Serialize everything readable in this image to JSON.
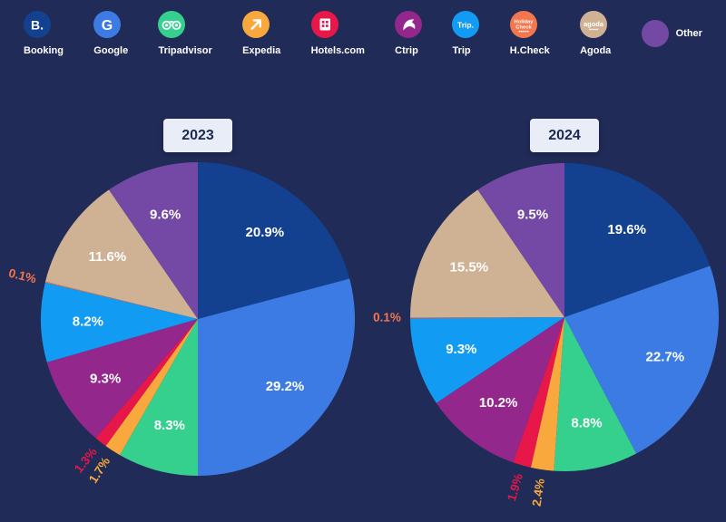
{
  "page": {
    "background": "#202b57",
    "badge_bg": "#e9edf8",
    "badge_text_color": "#1c2a52"
  },
  "legend": {
    "items": [
      {
        "label": "Booking",
        "icon": "booking-icon",
        "color": "#14418f"
      },
      {
        "label": "Google",
        "icon": "google-icon",
        "color": "#3d7be4"
      },
      {
        "label": "Tripadvisor",
        "icon": "tripadvisor-icon",
        "color": "#35d08e"
      },
      {
        "label": "Expedia",
        "icon": "expedia-icon",
        "color": "#f9a83d"
      },
      {
        "label": "Hotels.com",
        "icon": "hotels-icon",
        "color": "#e8174a"
      },
      {
        "label": "Ctrip",
        "icon": "ctrip-icon",
        "color": "#93278b"
      },
      {
        "label": "Trip",
        "icon": "trip-icon",
        "color": "#129bf2"
      },
      {
        "label": "H.Check",
        "icon": "holidaycheck-icon",
        "color": "#f3764d"
      },
      {
        "label": "Agoda",
        "icon": "agoda-icon",
        "color": "#cfb294"
      },
      {
        "label": "Other",
        "icon": "other-icon",
        "color": "#7349a5",
        "layout": "row"
      }
    ]
  },
  "chart_data": [
    {
      "type": "pie",
      "title": "2023",
      "unit": "%",
      "start_angle_deg": 0,
      "direction": "clockwise",
      "legend_position": "top",
      "categories": [
        "Booking",
        "Google",
        "Tripadvisor",
        "Expedia",
        "Hotels.com",
        "Ctrip",
        "Trip",
        "H.Check",
        "Agoda",
        "Other"
      ],
      "values": [
        20.9,
        29.2,
        8.3,
        1.7,
        1.3,
        9.3,
        8.2,
        0.1,
        11.6,
        9.6
      ],
      "colors": [
        "#14418f",
        "#3d7be4",
        "#35d08e",
        "#f9a83d",
        "#e8174a",
        "#93278b",
        "#129bf2",
        "#f3764d",
        "#cfb294",
        "#7349a5"
      ]
    },
    {
      "type": "pie",
      "title": "2024",
      "unit": "%",
      "start_angle_deg": 0,
      "direction": "clockwise",
      "legend_position": "top",
      "categories": [
        "Booking",
        "Google",
        "Tripadvisor",
        "Expedia",
        "Hotels.com",
        "Ctrip",
        "Trip",
        "H.Check",
        "Agoda",
        "Other"
      ],
      "values": [
        19.6,
        22.7,
        8.8,
        2.4,
        1.9,
        10.2,
        9.3,
        0.1,
        15.5,
        9.5
      ],
      "colors": [
        "#14418f",
        "#3d7be4",
        "#35d08e",
        "#f9a83d",
        "#e8174a",
        "#93278b",
        "#129bf2",
        "#f3764d",
        "#cfb294",
        "#7349a5"
      ]
    }
  ]
}
